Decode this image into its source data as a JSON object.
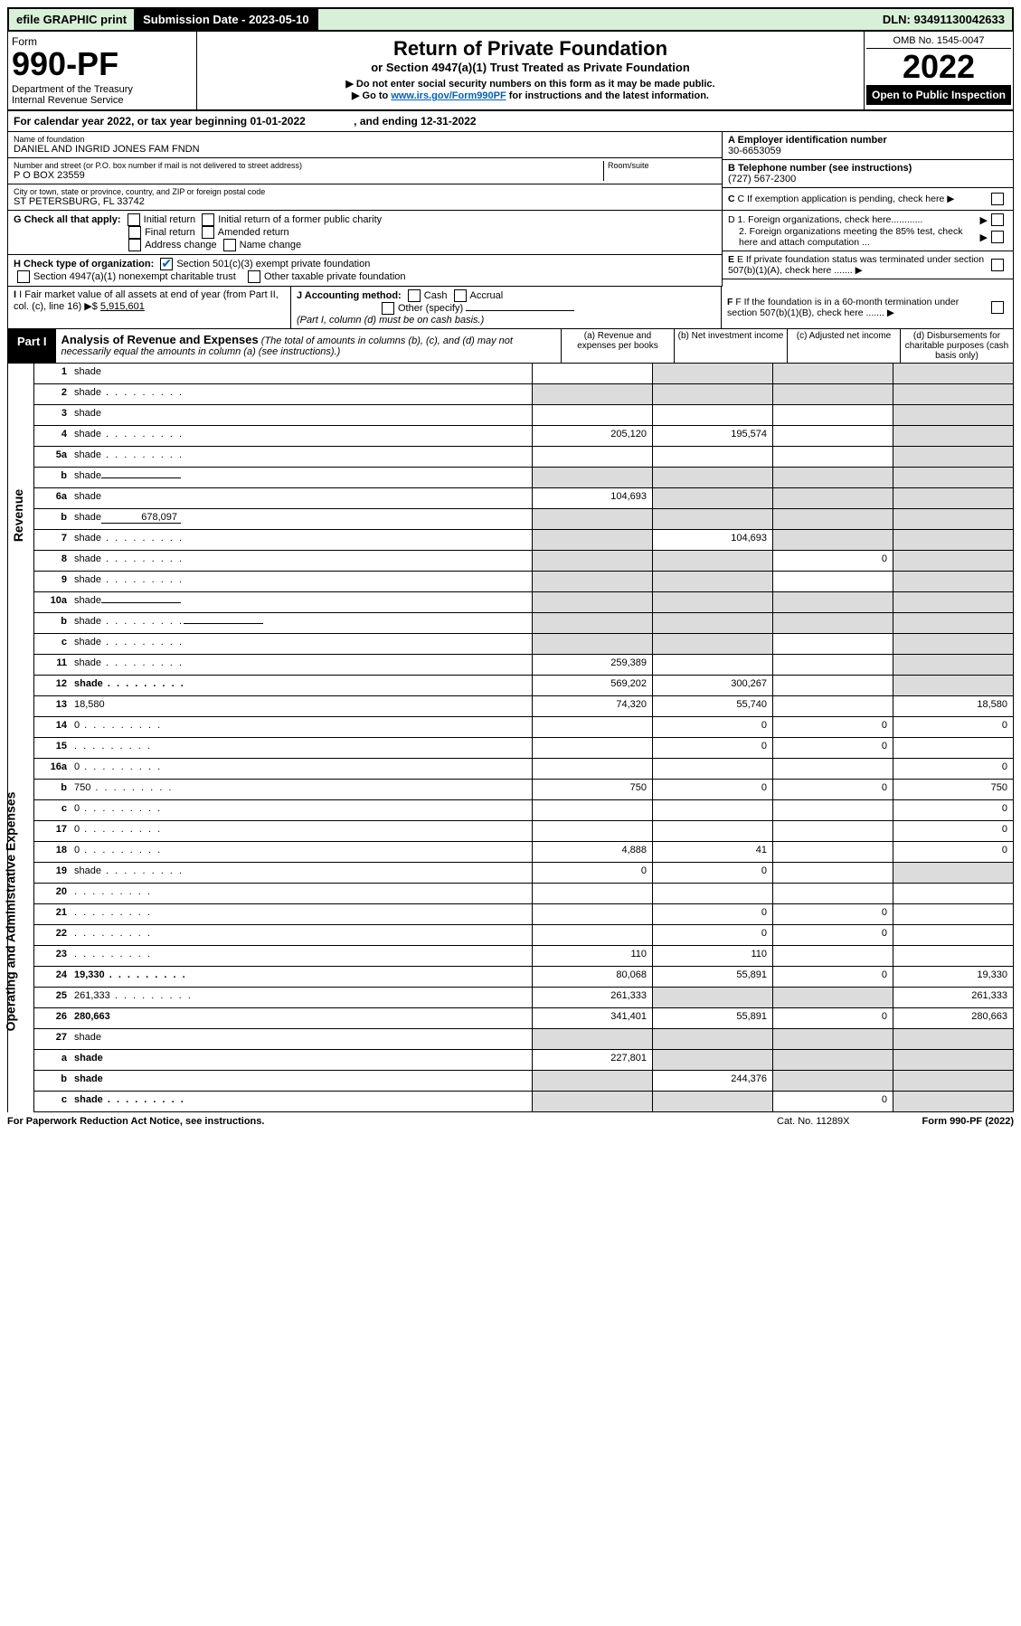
{
  "top_bar": {
    "efile": "efile GRAPHIC print",
    "sub_date_label": "Submission Date - 2023-05-10",
    "dln": "DLN: 93491130042633"
  },
  "header": {
    "form_word": "Form",
    "form_no": "990-PF",
    "dept": "Department of the Treasury\nInternal Revenue Service",
    "title": "Return of Private Foundation",
    "subtitle": "or Section 4947(a)(1) Trust Treated as Private Foundation",
    "note1": "▶ Do not enter social security numbers on this form as it may be made public.",
    "note2_pre": "▶ Go to ",
    "note2_link": "www.irs.gov/Form990PF",
    "note2_post": " for instructions and the latest information.",
    "omb": "OMB No. 1545-0047",
    "year": "2022",
    "inspection": "Open to Public Inspection"
  },
  "calendar": "For calendar year 2022, or tax year beginning 01-01-2022                , and ending 12-31-2022",
  "info": {
    "name_label": "Name of foundation",
    "name": "DANIEL AND INGRID JONES FAM FNDN",
    "addr_label": "Number and street (or P.O. box number if mail is not delivered to street address)",
    "addr": "P O BOX 23559",
    "room_label": "Room/suite",
    "city_label": "City or town, state or province, country, and ZIP or foreign postal code",
    "city": "ST PETERSBURG, FL  33742",
    "ein_label": "A Employer identification number",
    "ein": "30-6653059",
    "phone_label": "B Telephone number (see instructions)",
    "phone": "(727) 567-2300",
    "c_label": "C If exemption application is pending, check here",
    "g_label": "G Check all that apply:",
    "g_opts": [
      "Initial return",
      "Initial return of a former public charity",
      "Final return",
      "Amended return",
      "Address change",
      "Name change"
    ],
    "d1": "D 1. Foreign organizations, check here............",
    "d2": "2. Foreign organizations meeting the 85% test, check here and attach computation ...",
    "h_label": "H Check type of organization:",
    "h1": "Section 501(c)(3) exempt private foundation",
    "h2": "Section 4947(a)(1) nonexempt charitable trust",
    "h3": "Other taxable private foundation",
    "e_label": "E If private foundation status was terminated under section 507(b)(1)(A), check here .......",
    "i_label": "I Fair market value of all assets at end of year (from Part II, col. (c), line 16) ▶$",
    "i_val": "5,915,601",
    "j_label": "J Accounting method:",
    "j_cash": "Cash",
    "j_accrual": "Accrual",
    "j_other": "Other (specify)",
    "j_note": "(Part I, column (d) must be on cash basis.)",
    "f_label": "F If the foundation is in a 60-month termination under section 507(b)(1)(B), check here ......."
  },
  "part1": {
    "tab": "Part I",
    "title": "Analysis of Revenue and Expenses",
    "title_note": "(The total of amounts in columns (b), (c), and (d) may not necessarily equal the amounts in column (a) (see instructions).)",
    "col_a": "(a) Revenue and expenses per books",
    "col_b": "(b) Net investment income",
    "col_c": "(c) Adjusted net income",
    "col_d": "(d) Disbursements for charitable purposes (cash basis only)"
  },
  "side": {
    "revenue": "Revenue",
    "expenses": "Operating and Administrative Expenses"
  },
  "rows": [
    {
      "n": "1",
      "d": "shade",
      "a": "",
      "b": "shade",
      "c": "shade"
    },
    {
      "n": "2",
      "d": "shade",
      "a": "shade",
      "b": "shade",
      "c": "shade",
      "dots": true
    },
    {
      "n": "3",
      "d": "shade",
      "a": "",
      "b": "",
      "c": ""
    },
    {
      "n": "4",
      "d": "shade",
      "a": "205,120",
      "b": "195,574",
      "c": "",
      "dots": true
    },
    {
      "n": "5a",
      "d": "shade",
      "a": "",
      "b": "",
      "c": "",
      "dots": true
    },
    {
      "n": "b",
      "d": "shade",
      "a": "shade",
      "b": "shade",
      "c": "shade",
      "inline": ""
    },
    {
      "n": "6a",
      "d": "shade",
      "a": "104,693",
      "b": "shade",
      "c": "shade"
    },
    {
      "n": "b",
      "d": "shade",
      "a": "shade",
      "b": "shade",
      "c": "shade",
      "inline": "678,097"
    },
    {
      "n": "7",
      "d": "shade",
      "a": "shade",
      "b": "104,693",
      "c": "shade",
      "dots": true
    },
    {
      "n": "8",
      "d": "shade",
      "a": "shade",
      "b": "shade",
      "c": "0",
      "dots": true
    },
    {
      "n": "9",
      "d": "shade",
      "a": "shade",
      "b": "shade",
      "c": "",
      "dots": true
    },
    {
      "n": "10a",
      "d": "shade",
      "a": "shade",
      "b": "shade",
      "c": "shade",
      "inline": ""
    },
    {
      "n": "b",
      "d": "shade",
      "a": "shade",
      "b": "shade",
      "c": "shade",
      "inline": "",
      "dots": true
    },
    {
      "n": "c",
      "d": "shade",
      "a": "shade",
      "b": "shade",
      "c": "",
      "dots": true
    },
    {
      "n": "11",
      "d": "shade",
      "a": "259,389",
      "b": "",
      "c": "",
      "dots": true
    },
    {
      "n": "12",
      "d": "shade",
      "a": "569,202",
      "b": "300,267",
      "c": "",
      "bold": true,
      "dots": true
    }
  ],
  "rows2": [
    {
      "n": "13",
      "d": "18,580",
      "a": "74,320",
      "b": "55,740",
      "c": ""
    },
    {
      "n": "14",
      "d": "0",
      "a": "",
      "b": "0",
      "c": "0",
      "dots": true
    },
    {
      "n": "15",
      "d": "",
      "a": "",
      "b": "0",
      "c": "0",
      "dots": true
    },
    {
      "n": "16a",
      "d": "0",
      "a": "",
      "b": "",
      "c": "",
      "dots": true
    },
    {
      "n": "b",
      "d": "750",
      "a": "750",
      "b": "0",
      "c": "0",
      "dots": true
    },
    {
      "n": "c",
      "d": "0",
      "a": "",
      "b": "",
      "c": "",
      "dots": true
    },
    {
      "n": "17",
      "d": "0",
      "a": "",
      "b": "",
      "c": "",
      "dots": true
    },
    {
      "n": "18",
      "d": "0",
      "a": "4,888",
      "b": "41",
      "c": "",
      "dots": true
    },
    {
      "n": "19",
      "d": "shade",
      "a": "0",
      "b": "0",
      "c": "",
      "dots": true
    },
    {
      "n": "20",
      "d": "",
      "a": "",
      "b": "",
      "c": "",
      "dots": true
    },
    {
      "n": "21",
      "d": "",
      "a": "",
      "b": "0",
      "c": "0",
      "dots": true
    },
    {
      "n": "22",
      "d": "",
      "a": "",
      "b": "0",
      "c": "0",
      "dots": true
    },
    {
      "n": "23",
      "d": "",
      "a": "110",
      "b": "110",
      "c": "",
      "dots": true
    },
    {
      "n": "24",
      "d": "19,330",
      "a": "80,068",
      "b": "55,891",
      "c": "0",
      "bold": true,
      "dots": true
    },
    {
      "n": "25",
      "d": "261,333",
      "a": "261,333",
      "b": "shade",
      "c": "shade",
      "dots": true
    },
    {
      "n": "26",
      "d": "280,663",
      "a": "341,401",
      "b": "55,891",
      "c": "0",
      "bold": true
    },
    {
      "n": "27",
      "d": "shade",
      "a": "shade",
      "b": "shade",
      "c": "shade"
    },
    {
      "n": "a",
      "d": "shade",
      "a": "227,801",
      "b": "shade",
      "c": "shade",
      "bold": true
    },
    {
      "n": "b",
      "d": "shade",
      "a": "shade",
      "b": "244,376",
      "c": "shade",
      "bold": true
    },
    {
      "n": "c",
      "d": "shade",
      "a": "shade",
      "b": "shade",
      "c": "0",
      "bold": true,
      "dots": true
    }
  ],
  "footer": {
    "left": "For Paperwork Reduction Act Notice, see instructions.",
    "mid": "Cat. No. 11289X",
    "right": "Form 990-PF (2022)"
  }
}
